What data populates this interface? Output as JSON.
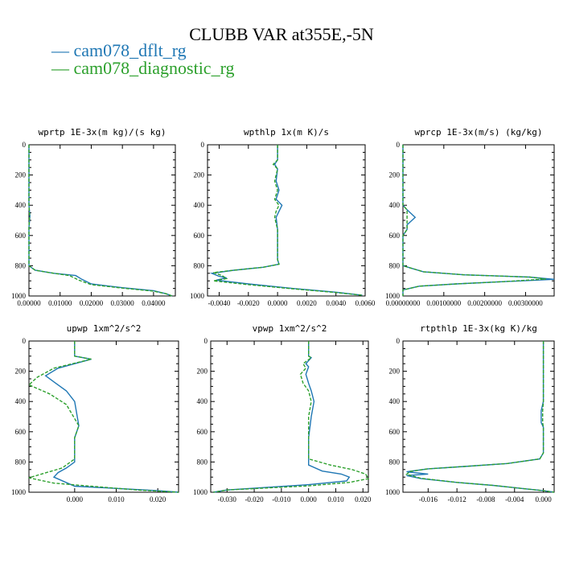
{
  "figure": {
    "title": "CLUBB VAR at355E,-5N",
    "legend": [
      {
        "label": "— cam078_dflt_rg",
        "color": "#1f77b4"
      },
      {
        "label": "— cam078_diagnostic_rg",
        "color": "#2ca02c"
      }
    ]
  },
  "chart_data": [
    {
      "type": "line",
      "title": "wprtp  1E-3x(m kg)/(s kg)",
      "xlim": [
        0,
        0.047
      ],
      "ylim": [
        0,
        1000
      ],
      "y_inverted": true,
      "xticks": [
        0,
        0.01,
        0.02,
        0.03,
        0.04
      ],
      "xtick_labels": [
        "0.00000",
        "0.01000",
        "0.02000",
        "0.03000",
        "0.04000"
      ],
      "yticks": [
        0,
        200,
        400,
        600,
        800,
        1000
      ],
      "series": [
        {
          "name": "cam078_dflt_rg",
          "color": "#1f77b4",
          "dash": false,
          "points": [
            [
              0,
              0
            ],
            [
              0,
              400
            ],
            [
              0.0003,
              470
            ],
            [
              0,
              550
            ],
            [
              0,
              800
            ],
            [
              0.002,
              830
            ],
            [
              0.008,
              850
            ],
            [
              0.015,
              865
            ],
            [
              0.017,
              890
            ],
            [
              0.02,
              920
            ],
            [
              0.03,
              945
            ],
            [
              0.04,
              965
            ],
            [
              0.044,
              985
            ],
            [
              0.046,
              1000
            ]
          ]
        },
        {
          "name": "cam078_diagnostic_rg",
          "color": "#2ca02c",
          "dash": true,
          "points": [
            [
              0,
              0
            ],
            [
              0,
              400
            ],
            [
              0.0002,
              470
            ],
            [
              0,
              550
            ],
            [
              0,
              800
            ],
            [
              0.002,
              830
            ],
            [
              0.008,
              850
            ],
            [
              0.013,
              865
            ],
            [
              0.016,
              895
            ],
            [
              0.02,
              925
            ],
            [
              0.03,
              948
            ],
            [
              0.04,
              968
            ],
            [
              0.044,
              985
            ],
            [
              0.046,
              1000
            ]
          ]
        }
      ]
    },
    {
      "type": "line",
      "title": "wpthlp  1x(m K)/s",
      "xlim": [
        -0.0048,
        0.006
      ],
      "ylim": [
        0,
        1000
      ],
      "y_inverted": true,
      "xticks": [
        -0.004,
        -0.002,
        0,
        0.002,
        0.004,
        0.006
      ],
      "xtick_labels": [
        "-0.0040",
        "-0.0020",
        "0.0000",
        "0.0020",
        "0.0040",
        "0.0060"
      ],
      "yticks": [
        0,
        200,
        400,
        600,
        800,
        1000
      ],
      "series": [
        {
          "name": "cam078_dflt_rg",
          "color": "#1f77b4",
          "dash": false,
          "points": [
            [
              0,
              0
            ],
            [
              0,
              100
            ],
            [
              -0.0002,
              130
            ],
            [
              0,
              160
            ],
            [
              -0.0001,
              240
            ],
            [
              0.0001,
              300
            ],
            [
              -0.0001,
              360
            ],
            [
              0.0003,
              400
            ],
            [
              0.0001,
              440
            ],
            [
              -0.0001,
              480
            ],
            [
              0,
              560
            ],
            [
              0,
              760
            ],
            [
              0.0001,
              790
            ],
            [
              -0.001,
              810
            ],
            [
              -0.003,
              830
            ],
            [
              -0.0045,
              850
            ],
            [
              -0.004,
              870
            ],
            [
              -0.0035,
              880
            ],
            [
              -0.0042,
              895
            ],
            [
              -0.002,
              920
            ],
            [
              0.001,
              950
            ],
            [
              0.004,
              975
            ],
            [
              0.0058,
              995
            ]
          ]
        },
        {
          "name": "cam078_diagnostic_rg",
          "color": "#2ca02c",
          "dash": true,
          "points": [
            [
              0,
              0
            ],
            [
              0,
              100
            ],
            [
              -0.0003,
              130
            ],
            [
              0,
              160
            ],
            [
              -0.0002,
              240
            ],
            [
              0,
              300
            ],
            [
              -0.0002,
              360
            ],
            [
              0.0001,
              400
            ],
            [
              -0.0001,
              440
            ],
            [
              -0.0002,
              480
            ],
            [
              0,
              560
            ],
            [
              0,
              760
            ],
            [
              0.0001,
              790
            ],
            [
              -0.001,
              810
            ],
            [
              -0.003,
              830
            ],
            [
              -0.0044,
              845
            ],
            [
              -0.0038,
              865
            ],
            [
              -0.0035,
              885
            ],
            [
              -0.0044,
              900
            ],
            [
              -0.002,
              925
            ],
            [
              0.001,
              952
            ],
            [
              0.004,
              977
            ],
            [
              0.0058,
              995
            ]
          ]
        }
      ]
    },
    {
      "type": "line",
      "title": "wprcp  1E-3x(m/s) (kg/kg)",
      "xlim": [
        0,
        0.0037
      ],
      "ylim": [
        0,
        1000
      ],
      "y_inverted": true,
      "xticks": [
        0,
        0.001,
        0.002,
        0.003
      ],
      "xtick_labels": [
        "0.00000000",
        "0.00100000",
        "0.00200000",
        "0.00300000"
      ],
      "yticks": [
        0,
        200,
        400,
        600,
        800,
        1000
      ],
      "series": [
        {
          "name": "cam078_dflt_rg",
          "color": "#1f77b4",
          "dash": false,
          "points": [
            [
              0,
              0
            ],
            [
              0,
              400
            ],
            [
              0.0001,
              430
            ],
            [
              0.0003,
              480
            ],
            [
              0.0001,
              530
            ],
            [
              0.0001,
              560
            ],
            [
              0,
              600
            ],
            [
              0,
              800
            ],
            [
              0.0005,
              840
            ],
            [
              0.0015,
              860
            ],
            [
              0.0031,
              875
            ],
            [
              0.0037,
              890
            ],
            [
              0.0025,
              905
            ],
            [
              0.0013,
              920
            ],
            [
              0.0004,
              935
            ],
            [
              0,
              960
            ],
            [
              0,
              1000
            ]
          ]
        },
        {
          "name": "cam078_diagnostic_rg",
          "color": "#2ca02c",
          "dash": true,
          "points": [
            [
              0,
              0
            ],
            [
              0,
              400
            ],
            [
              0.0001,
              430
            ],
            [
              0.0001,
              480
            ],
            [
              0.0001,
              530
            ],
            [
              0.0001,
              560
            ],
            [
              0,
              600
            ],
            [
              0,
              800
            ],
            [
              0.0005,
              840
            ],
            [
              0.0015,
              860
            ],
            [
              0.0031,
              875
            ],
            [
              0.0035,
              888
            ],
            [
              0.0025,
              905
            ],
            [
              0.0013,
              920
            ],
            [
              0.0004,
              935
            ],
            [
              0,
              960
            ],
            [
              0,
              1000
            ]
          ]
        }
      ]
    },
    {
      "type": "line",
      "title": "upwp  1xm^2/s^2",
      "xlim": [
        -0.011,
        0.025
      ],
      "ylim": [
        0,
        1000
      ],
      "y_inverted": true,
      "xticks": [
        0,
        0.01,
        0.02
      ],
      "xtick_labels": [
        "0.000",
        "0.010",
        "0.020"
      ],
      "yticks": [
        0,
        200,
        400,
        600,
        800,
        1000
      ],
      "series": [
        {
          "name": "cam078_dflt_rg",
          "color": "#1f77b4",
          "dash": false,
          "points": [
            [
              0,
              0
            ],
            [
              0,
              100
            ],
            [
              0.004,
              120
            ],
            [
              -0.004,
              180
            ],
            [
              -0.007,
              230
            ],
            [
              -0.005,
              270
            ],
            [
              -0.002,
              330
            ],
            [
              0,
              400
            ],
            [
              0.001,
              560
            ],
            [
              0,
              640
            ],
            [
              0,
              800
            ],
            [
              -0.002,
              840
            ],
            [
              -0.004,
              870
            ],
            [
              -0.005,
              900
            ],
            [
              0,
              960
            ],
            [
              0.02,
              990
            ],
            [
              0.025,
              1000
            ]
          ]
        },
        {
          "name": "cam078_diagnostic_rg",
          "color": "#2ca02c",
          "dash": true,
          "points": [
            [
              0,
              0
            ],
            [
              0,
              100
            ],
            [
              0.004,
              120
            ],
            [
              -0.005,
              180
            ],
            [
              -0.009,
              240
            ],
            [
              -0.011,
              290
            ],
            [
              -0.006,
              350
            ],
            [
              -0.002,
              420
            ],
            [
              0.001,
              560
            ],
            [
              0,
              640
            ],
            [
              0,
              780
            ],
            [
              -0.003,
              840
            ],
            [
              -0.008,
              880
            ],
            [
              -0.011,
              905
            ],
            [
              -0.005,
              940
            ],
            [
              0.015,
              985
            ],
            [
              0.025,
              1000
            ]
          ]
        }
      ]
    },
    {
      "type": "line",
      "title": "vpwp  1xm^2/s^2",
      "xlim": [
        -0.036,
        0.022
      ],
      "ylim": [
        0,
        1000
      ],
      "y_inverted": true,
      "xticks": [
        -0.03,
        -0.02,
        -0.01,
        0,
        0.01,
        0.02
      ],
      "xtick_labels": [
        "-0.030",
        "-0.020",
        "-0.010",
        "0.000",
        "0.010",
        "0.020"
      ],
      "yticks": [
        0,
        200,
        400,
        600,
        800,
        1000
      ],
      "series": [
        {
          "name": "cam078_dflt_rg",
          "color": "#1f77b4",
          "dash": false,
          "points": [
            [
              0,
              0
            ],
            [
              0,
              100
            ],
            [
              0.001,
              110
            ],
            [
              -0.001,
              150
            ],
            [
              0,
              170
            ],
            [
              -0.001,
              220
            ],
            [
              0,
              280
            ],
            [
              0.001,
              330
            ],
            [
              0.002,
              400
            ],
            [
              0.001,
              500
            ],
            [
              0,
              640
            ],
            [
              0,
              820
            ],
            [
              0.005,
              860
            ],
            [
              0.012,
              880
            ],
            [
              0.015,
              900
            ],
            [
              0.014,
              925
            ],
            [
              0,
              950
            ],
            [
              -0.03,
              985
            ],
            [
              -0.035,
              1000
            ]
          ]
        },
        {
          "name": "cam078_diagnostic_rg",
          "color": "#2ca02c",
          "dash": true,
          "points": [
            [
              0,
              0
            ],
            [
              0,
              100
            ],
            [
              0.001,
              110
            ],
            [
              -0.002,
              150
            ],
            [
              -0.001,
              180
            ],
            [
              -0.003,
              220
            ],
            [
              -0.002,
              280
            ],
            [
              0,
              330
            ],
            [
              0.001,
              400
            ],
            [
              0,
              500
            ],
            [
              0,
              640
            ],
            [
              0,
              780
            ],
            [
              0.008,
              820
            ],
            [
              0.016,
              850
            ],
            [
              0.021,
              880
            ],
            [
              0.022,
              910
            ],
            [
              0.015,
              935
            ],
            [
              0,
              958
            ],
            [
              -0.03,
              985
            ],
            [
              -0.035,
              1000
            ]
          ]
        }
      ]
    },
    {
      "type": "line",
      "title": "rtpthlp  1E-3x(kg K)/kg",
      "xlim": [
        -0.0195,
        0.0015
      ],
      "ylim": [
        0,
        1000
      ],
      "y_inverted": true,
      "xticks": [
        -0.016,
        -0.012,
        -0.008,
        -0.004,
        0
      ],
      "xtick_labels": [
        "-0.016",
        "-0.012",
        "-0.008",
        "-0.004",
        "0.000"
      ],
      "yticks": [
        0,
        200,
        400,
        600,
        800,
        1000
      ],
      "series": [
        {
          "name": "cam078_dflt_rg",
          "color": "#1f77b4",
          "dash": false,
          "points": [
            [
              0,
              0
            ],
            [
              0,
              400
            ],
            [
              -0.0003,
              460
            ],
            [
              -0.0003,
              540
            ],
            [
              0,
              570
            ],
            [
              0,
              740
            ],
            [
              -0.0005,
              780
            ],
            [
              -0.005,
              810
            ],
            [
              -0.011,
              830
            ],
            [
              -0.016,
              845
            ],
            [
              -0.019,
              865
            ],
            [
              -0.016,
              880
            ],
            [
              -0.019,
              890
            ],
            [
              -0.017,
              910
            ],
            [
              -0.012,
              935
            ],
            [
              -0.007,
              955
            ],
            [
              -0.003,
              975
            ],
            [
              0,
              990
            ],
            [
              0.0015,
              1000
            ]
          ]
        },
        {
          "name": "cam078_diagnostic_rg",
          "color": "#2ca02c",
          "dash": true,
          "points": [
            [
              0,
              0
            ],
            [
              0,
              400
            ],
            [
              -0.0001,
              460
            ],
            [
              -0.0001,
              540
            ],
            [
              0,
              570
            ],
            [
              0,
              740
            ],
            [
              -0.0005,
              780
            ],
            [
              -0.005,
              810
            ],
            [
              -0.011,
              830
            ],
            [
              -0.016,
              845
            ],
            [
              -0.0185,
              862
            ],
            [
              -0.019,
              882
            ],
            [
              -0.017,
              908
            ],
            [
              -0.012,
              935
            ],
            [
              -0.007,
              955
            ],
            [
              -0.003,
              975
            ],
            [
              0,
              990
            ],
            [
              0.0015,
              1000
            ]
          ]
        }
      ]
    }
  ]
}
